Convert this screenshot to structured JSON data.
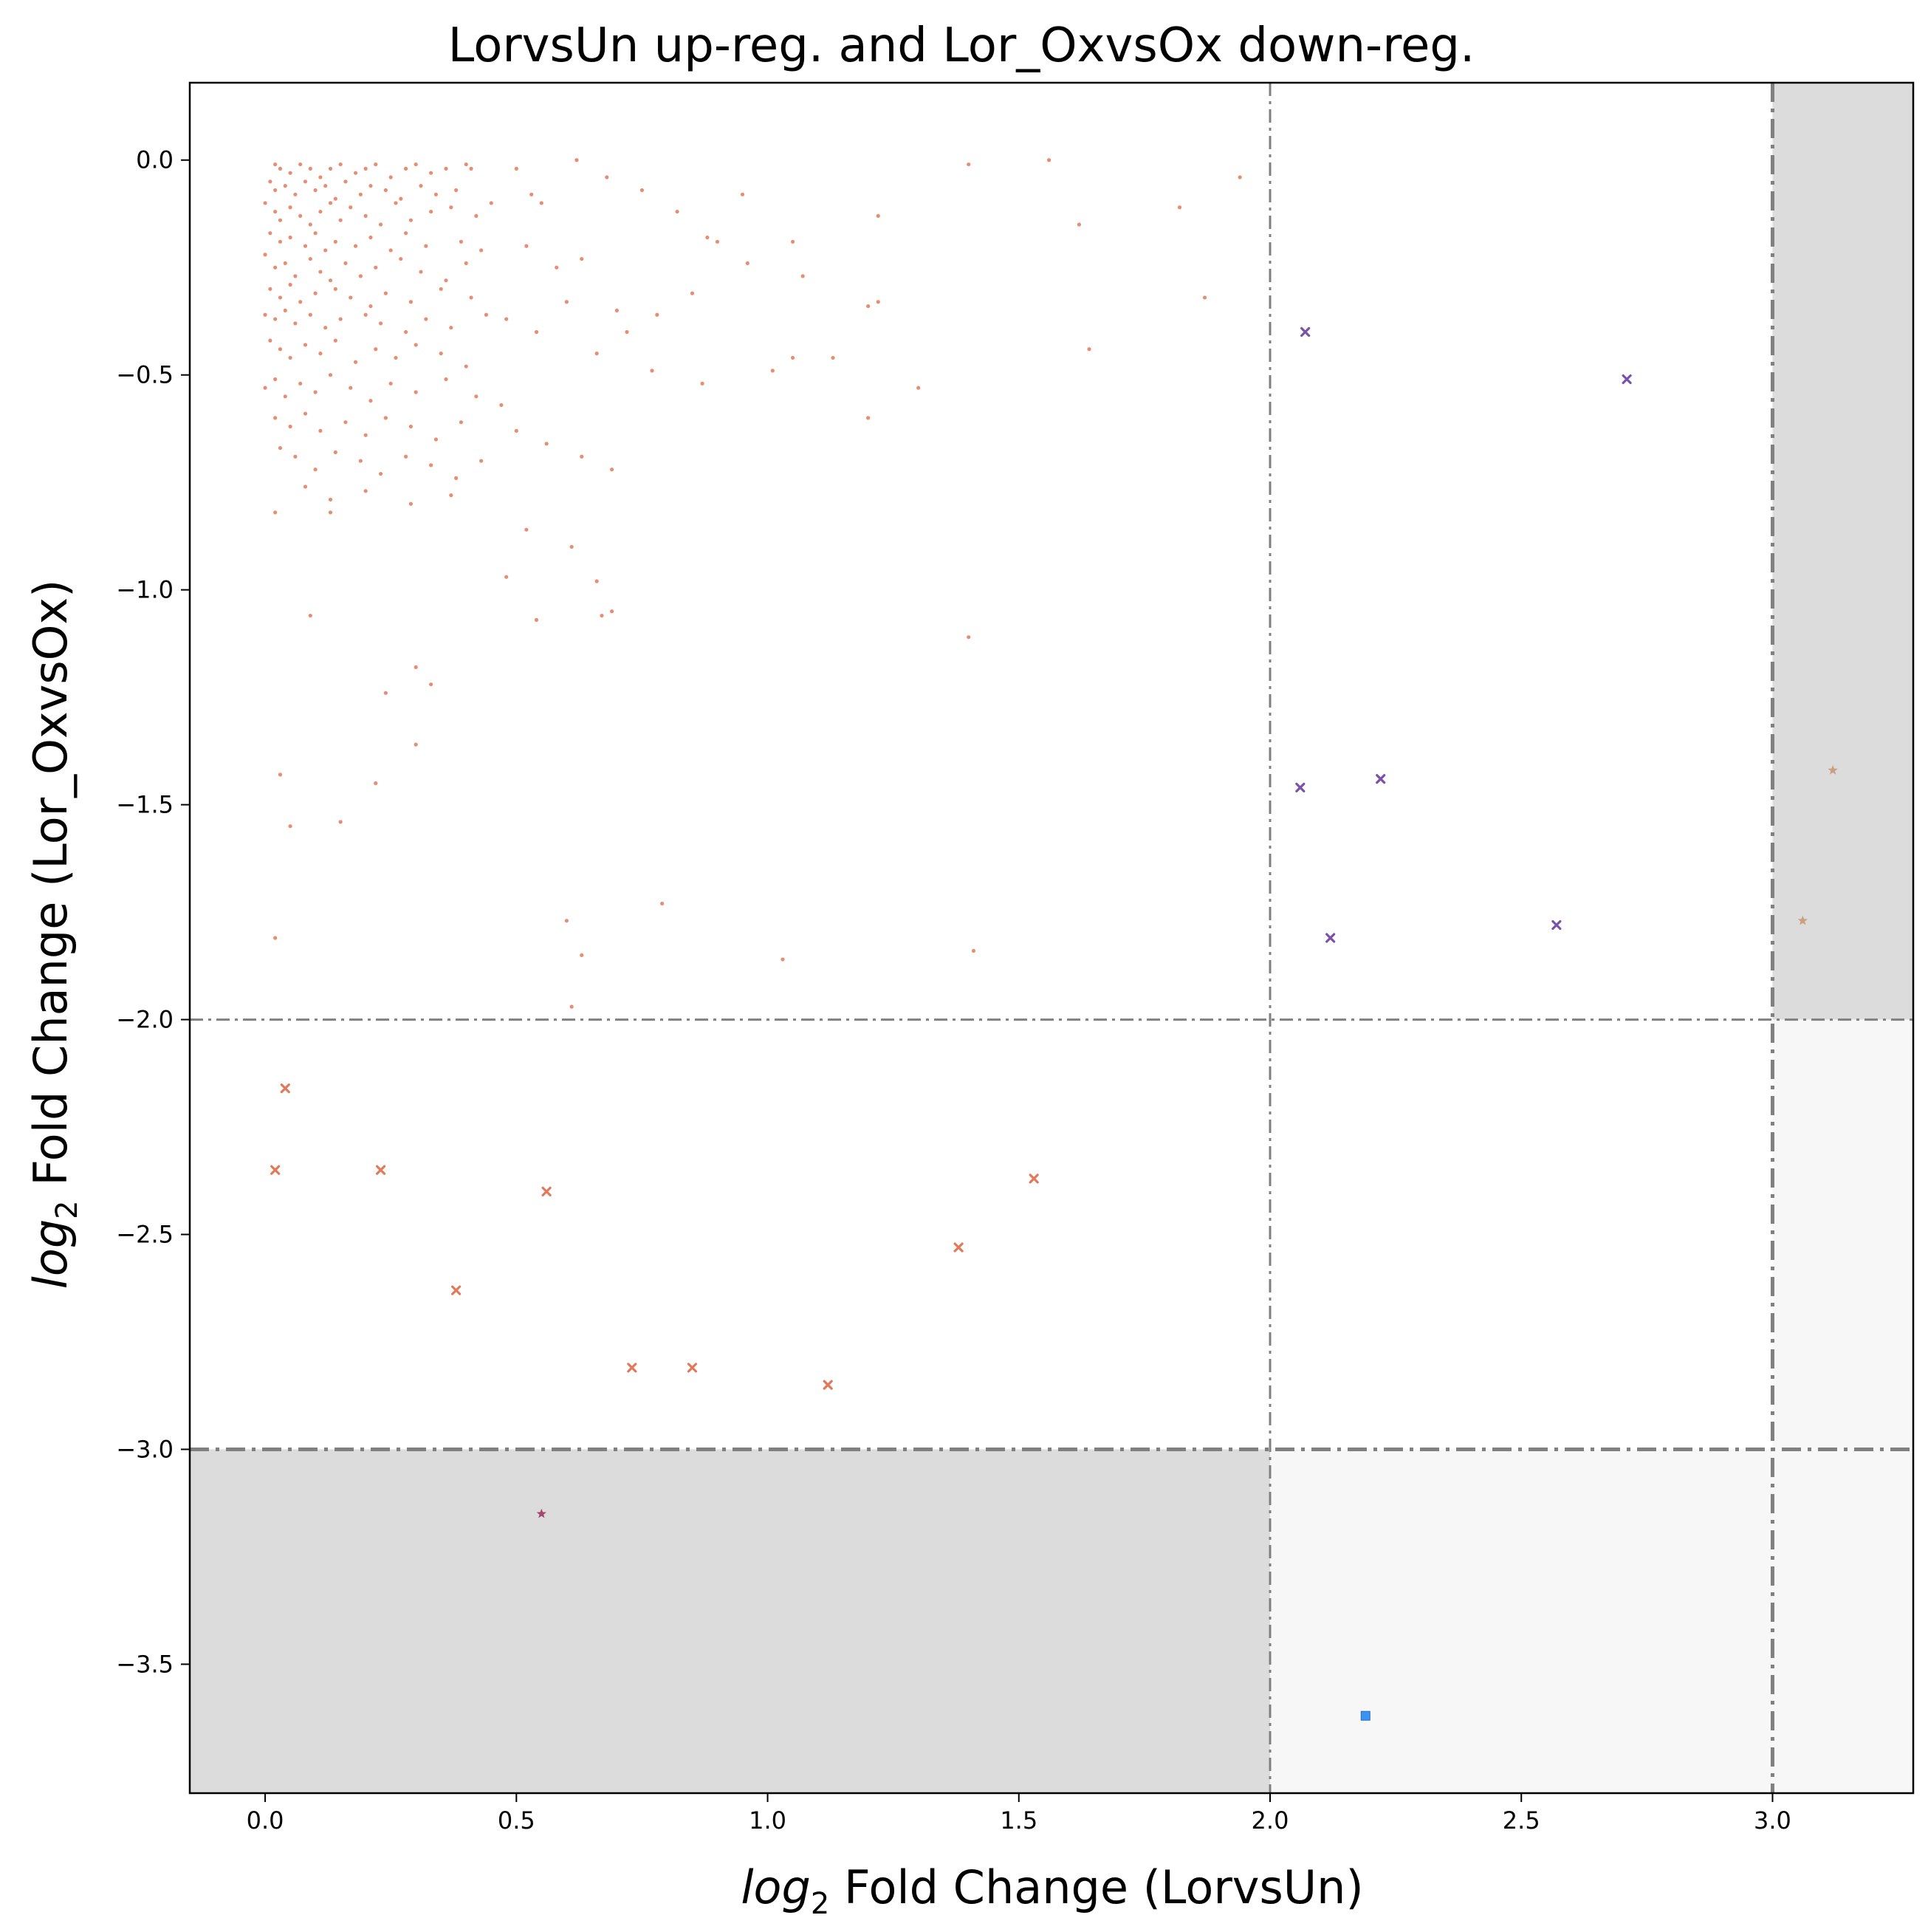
{
  "chart_data": {
    "type": "scatter",
    "title": "LorvsUn up-reg. and Lor_OxvsOx down-reg.",
    "xlabel_prefix": "log",
    "xlabel_sub": "2",
    "xlabel_rest": " Fold Change (LorvsUn)",
    "ylabel_prefix": "log",
    "ylabel_sub": "2",
    "ylabel_rest": " Fold Change (Lor_OxvsOx)",
    "xlim": [
      -0.15,
      3.28
    ],
    "ylim": [
      -3.8,
      0.18
    ],
    "xticks": [
      0.0,
      0.5,
      1.0,
      1.5,
      2.0,
      2.5,
      3.0
    ],
    "xtick_labels": [
      "0.0",
      "0.5",
      "1.0",
      "1.5",
      "2.0",
      "2.5",
      "3.0"
    ],
    "yticks": [
      0.0,
      -0.5,
      -1.0,
      -1.5,
      -2.0,
      -2.5,
      -3.0,
      -3.5
    ],
    "ytick_labels": [
      "0.0",
      "−0.5",
      "−1.0",
      "−1.5",
      "−2.0",
      "−2.5",
      "−3.0",
      "−3.5"
    ],
    "grid": false,
    "regions": [
      {
        "x": [
          -0.15,
          2.0
        ],
        "y": [
          -3.8,
          -3.0
        ],
        "color": "#dcdcdc"
      },
      {
        "x": [
          3.0,
          3.28
        ],
        "y": [
          -2.0,
          0.18
        ],
        "color": "#dcdcdc"
      },
      {
        "x": [
          2.0,
          3.28
        ],
        "y": [
          -3.8,
          -3.0
        ],
        "color": "#f7f7f7"
      },
      {
        "x": [
          3.0,
          3.28
        ],
        "y": [
          -3.0,
          -2.0
        ],
        "color": "#f7f7f7"
      }
    ],
    "threshold_lines": [
      {
        "orientation": "vertical",
        "value": 2.0,
        "style": "thin"
      },
      {
        "orientation": "vertical",
        "value": 3.0,
        "style": "thick"
      },
      {
        "orientation": "horizontal",
        "value": -2.0,
        "style": "thin"
      },
      {
        "orientation": "horizontal",
        "value": -3.0,
        "style": "thick"
      }
    ],
    "series": [
      {
        "marker": "dot",
        "color": "#e07a5a",
        "points": [
          [
            0.02,
            -0.01
          ],
          [
            0.03,
            -0.02
          ],
          [
            0.05,
            -0.03
          ],
          [
            0.07,
            -0.01
          ],
          [
            0.09,
            -0.02
          ],
          [
            0.11,
            -0.04
          ],
          [
            0.13,
            -0.02
          ],
          [
            0.15,
            -0.01
          ],
          [
            0.18,
            -0.03
          ],
          [
            0.2,
            -0.02
          ],
          [
            0.22,
            -0.01
          ],
          [
            0.25,
            -0.04
          ],
          [
            0.28,
            -0.02
          ],
          [
            0.3,
            -0.01
          ],
          [
            0.33,
            -0.03
          ],
          [
            0.36,
            -0.02
          ],
          [
            0.4,
            -0.01
          ],
          [
            0.41,
            -0.02
          ],
          [
            0.01,
            -0.05
          ],
          [
            0.02,
            -0.07
          ],
          [
            0.04,
            -0.06
          ],
          [
            0.06,
            -0.08
          ],
          [
            0.08,
            -0.05
          ],
          [
            0.1,
            -0.07
          ],
          [
            0.12,
            -0.06
          ],
          [
            0.14,
            -0.09
          ],
          [
            0.16,
            -0.05
          ],
          [
            0.19,
            -0.08
          ],
          [
            0.21,
            -0.06
          ],
          [
            0.24,
            -0.07
          ],
          [
            0.27,
            -0.09
          ],
          [
            0.31,
            -0.06
          ],
          [
            0.34,
            -0.08
          ],
          [
            0.38,
            -0.07
          ],
          [
            0.0,
            -0.1
          ],
          [
            0.02,
            -0.12
          ],
          [
            0.03,
            -0.14
          ],
          [
            0.05,
            -0.11
          ],
          [
            0.07,
            -0.13
          ],
          [
            0.09,
            -0.15
          ],
          [
            0.11,
            -0.12
          ],
          [
            0.13,
            -0.1
          ],
          [
            0.15,
            -0.14
          ],
          [
            0.17,
            -0.11
          ],
          [
            0.2,
            -0.13
          ],
          [
            0.23,
            -0.15
          ],
          [
            0.26,
            -0.1
          ],
          [
            0.29,
            -0.14
          ],
          [
            0.33,
            -0.12
          ],
          [
            0.37,
            -0.11
          ],
          [
            0.42,
            -0.13
          ],
          [
            0.45,
            -0.1
          ],
          [
            0.01,
            -0.17
          ],
          [
            0.03,
            -0.19
          ],
          [
            0.05,
            -0.18
          ],
          [
            0.08,
            -0.2
          ],
          [
            0.1,
            -0.17
          ],
          [
            0.12,
            -0.21
          ],
          [
            0.14,
            -0.19
          ],
          [
            0.18,
            -0.2
          ],
          [
            0.21,
            -0.18
          ],
          [
            0.25,
            -0.21
          ],
          [
            0.28,
            -0.17
          ],
          [
            0.32,
            -0.2
          ],
          [
            0.39,
            -0.19
          ],
          [
            0.43,
            -0.21
          ],
          [
            0.0,
            -0.22
          ],
          [
            0.02,
            -0.25
          ],
          [
            0.04,
            -0.24
          ],
          [
            0.06,
            -0.27
          ],
          [
            0.09,
            -0.23
          ],
          [
            0.11,
            -0.26
          ],
          [
            0.13,
            -0.28
          ],
          [
            0.16,
            -0.24
          ],
          [
            0.19,
            -0.27
          ],
          [
            0.22,
            -0.25
          ],
          [
            0.27,
            -0.23
          ],
          [
            0.31,
            -0.26
          ],
          [
            0.36,
            -0.28
          ],
          [
            0.4,
            -0.24
          ],
          [
            0.01,
            -0.3
          ],
          [
            0.03,
            -0.32
          ],
          [
            0.05,
            -0.29
          ],
          [
            0.07,
            -0.33
          ],
          [
            0.1,
            -0.31
          ],
          [
            0.14,
            -0.3
          ],
          [
            0.17,
            -0.32
          ],
          [
            0.21,
            -0.34
          ],
          [
            0.24,
            -0.31
          ],
          [
            0.29,
            -0.33
          ],
          [
            0.35,
            -0.3
          ],
          [
            0.41,
            -0.32
          ],
          [
            0.0,
            -0.36
          ],
          [
            0.02,
            -0.37
          ],
          [
            0.04,
            -0.35
          ],
          [
            0.06,
            -0.38
          ],
          [
            0.09,
            -0.36
          ],
          [
            0.12,
            -0.39
          ],
          [
            0.15,
            -0.37
          ],
          [
            0.2,
            -0.36
          ],
          [
            0.23,
            -0.38
          ],
          [
            0.28,
            -0.4
          ],
          [
            0.32,
            -0.37
          ],
          [
            0.37,
            -0.39
          ],
          [
            0.44,
            -0.36
          ],
          [
            0.01,
            -0.42
          ],
          [
            0.03,
            -0.44
          ],
          [
            0.05,
            -0.46
          ],
          [
            0.08,
            -0.43
          ],
          [
            0.11,
            -0.45
          ],
          [
            0.14,
            -0.42
          ],
          [
            0.18,
            -0.47
          ],
          [
            0.22,
            -0.44
          ],
          [
            0.26,
            -0.46
          ],
          [
            0.3,
            -0.43
          ],
          [
            0.35,
            -0.45
          ],
          [
            0.4,
            -0.48
          ],
          [
            0.0,
            -0.53
          ],
          [
            0.02,
            -0.51
          ],
          [
            0.04,
            -0.55
          ],
          [
            0.07,
            -0.52
          ],
          [
            0.1,
            -0.54
          ],
          [
            0.13,
            -0.5
          ],
          [
            0.17,
            -0.53
          ],
          [
            0.21,
            -0.56
          ],
          [
            0.25,
            -0.52
          ],
          [
            0.3,
            -0.54
          ],
          [
            0.36,
            -0.51
          ],
          [
            0.42,
            -0.55
          ],
          [
            0.02,
            -0.6
          ],
          [
            0.05,
            -0.62
          ],
          [
            0.08,
            -0.59
          ],
          [
            0.11,
            -0.63
          ],
          [
            0.16,
            -0.61
          ],
          [
            0.2,
            -0.64
          ],
          [
            0.24,
            -0.6
          ],
          [
            0.29,
            -0.62
          ],
          [
            0.34,
            -0.65
          ],
          [
            0.39,
            -0.61
          ],
          [
            0.03,
            -0.67
          ],
          [
            0.06,
            -0.69
          ],
          [
            0.1,
            -0.72
          ],
          [
            0.14,
            -0.68
          ],
          [
            0.19,
            -0.7
          ],
          [
            0.23,
            -0.73
          ],
          [
            0.28,
            -0.69
          ],
          [
            0.33,
            -0.71
          ],
          [
            0.38,
            -0.74
          ],
          [
            0.43,
            -0.7
          ],
          [
            0.08,
            -0.76
          ],
          [
            0.13,
            -0.79
          ],
          [
            0.2,
            -0.77
          ],
          [
            0.29,
            -0.8
          ],
          [
            0.37,
            -0.78
          ],
          [
            0.5,
            -0.02
          ],
          [
            0.53,
            -0.08
          ],
          [
            0.55,
            -0.1
          ],
          [
            0.62,
            -0.0
          ],
          [
            0.68,
            -0.04
          ],
          [
            0.75,
            -0.07
          ],
          [
            0.82,
            -0.12
          ],
          [
            0.88,
            -0.18
          ],
          [
            0.95,
            -0.08
          ],
          [
            1.05,
            -0.19
          ],
          [
            1.22,
            -0.13
          ],
          [
            1.4,
            -0.01
          ],
          [
            1.56,
            -0.0
          ],
          [
            1.62,
            -0.15
          ],
          [
            1.82,
            -0.11
          ],
          [
            1.94,
            -0.04
          ],
          [
            0.52,
            -0.2
          ],
          [
            0.58,
            -0.25
          ],
          [
            0.63,
            -0.23
          ],
          [
            0.7,
            -0.35
          ],
          [
            0.78,
            -0.36
          ],
          [
            0.85,
            -0.31
          ],
          [
            0.9,
            -0.19
          ],
          [
            0.96,
            -0.24
          ],
          [
            1.07,
            -0.27
          ],
          [
            1.2,
            -0.34
          ],
          [
            1.22,
            -0.33
          ],
          [
            1.87,
            -0.32
          ],
          [
            0.48,
            -0.37
          ],
          [
            0.54,
            -0.4
          ],
          [
            0.6,
            -0.33
          ],
          [
            0.66,
            -0.45
          ],
          [
            0.72,
            -0.4
          ],
          [
            0.77,
            -0.49
          ],
          [
            0.87,
            -0.52
          ],
          [
            1.01,
            -0.49
          ],
          [
            1.05,
            -0.46
          ],
          [
            1.13,
            -0.46
          ],
          [
            1.3,
            -0.53
          ],
          [
            1.64,
            -0.44
          ],
          [
            0.47,
            -0.57
          ],
          [
            0.5,
            -0.63
          ],
          [
            0.56,
            -0.66
          ],
          [
            0.63,
            -0.69
          ],
          [
            0.69,
            -0.72
          ],
          [
            1.2,
            -0.6
          ],
          [
            0.02,
            -0.82
          ],
          [
            0.13,
            -0.82
          ],
          [
            0.48,
            -0.97
          ],
          [
            0.52,
            -0.86
          ],
          [
            0.61,
            -0.9
          ],
          [
            0.66,
            -0.98
          ],
          [
            0.67,
            -1.06
          ],
          [
            0.69,
            -1.05
          ],
          [
            0.09,
            -1.06
          ],
          [
            0.54,
            -1.07
          ],
          [
            1.4,
            -1.11
          ],
          [
            0.24,
            -1.24
          ],
          [
            0.3,
            -1.18
          ],
          [
            0.33,
            -1.22
          ],
          [
            0.3,
            -1.36
          ],
          [
            0.03,
            -1.43
          ],
          [
            0.22,
            -1.45
          ],
          [
            0.05,
            -1.55
          ],
          [
            0.15,
            -1.54
          ],
          [
            0.02,
            -1.81
          ],
          [
            0.6,
            -1.77
          ],
          [
            0.63,
            -1.85
          ],
          [
            0.79,
            -1.73
          ],
          [
            1.03,
            -1.86
          ],
          [
            1.41,
            -1.84
          ],
          [
            0.61,
            -1.97
          ]
        ]
      },
      {
        "marker": "x",
        "color": "#e07a5a",
        "points": [
          [
            0.04,
            -2.16
          ],
          [
            0.02,
            -2.35
          ],
          [
            0.23,
            -2.35
          ],
          [
            0.56,
            -2.4
          ],
          [
            0.38,
            -2.63
          ],
          [
            0.73,
            -2.81
          ],
          [
            0.85,
            -2.81
          ],
          [
            1.12,
            -2.85
          ],
          [
            1.38,
            -2.53
          ],
          [
            1.53,
            -2.37
          ]
        ]
      },
      {
        "marker": "x",
        "color": "#7b52a8",
        "points": [
          [
            2.07,
            -0.4
          ],
          [
            2.71,
            -0.51
          ],
          [
            2.06,
            -1.46
          ],
          [
            2.22,
            -1.44
          ],
          [
            2.12,
            -1.81
          ],
          [
            2.57,
            -1.78
          ]
        ]
      },
      {
        "marker": "star",
        "color": "#c9a082",
        "points": [
          [
            3.06,
            -1.77
          ],
          [
            3.12,
            -1.42
          ]
        ]
      },
      {
        "marker": "star",
        "color": "#a24a6e",
        "points": [
          [
            0.55,
            -3.15
          ]
        ]
      },
      {
        "marker": "square",
        "color": "#3a93f0",
        "points": [
          [
            2.19,
            -3.62
          ]
        ]
      }
    ]
  }
}
